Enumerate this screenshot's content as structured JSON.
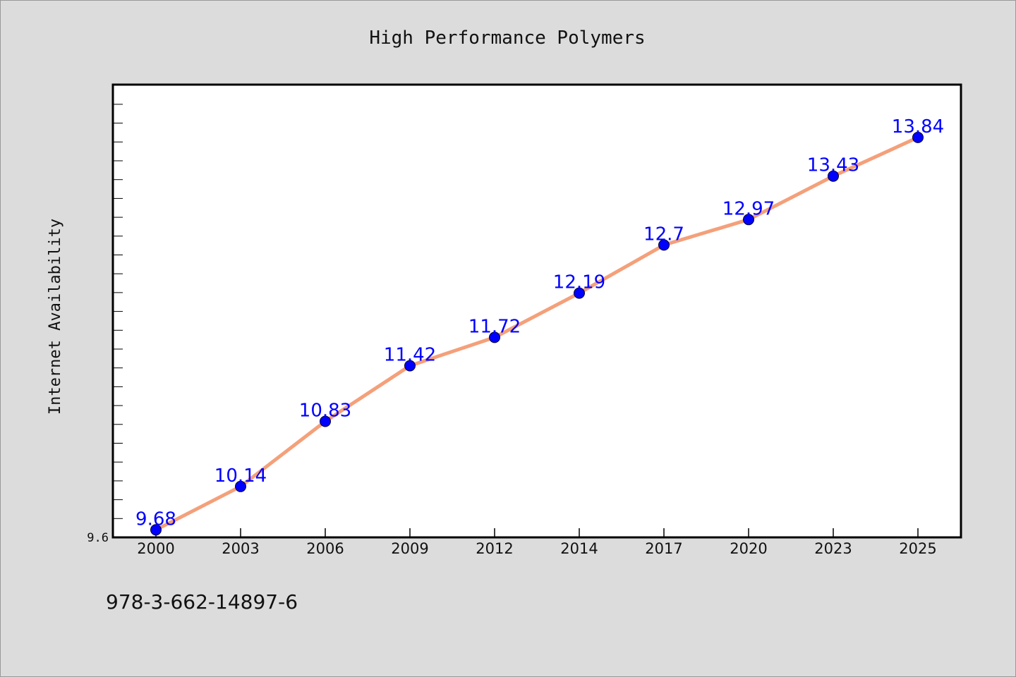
{
  "chart_data": {
    "type": "line",
    "title": "High Performance Polymers",
    "xlabel": "",
    "ylabel": "Internet Availability",
    "categories": [
      "2000",
      "2003",
      "2006",
      "2009",
      "2012",
      "2014",
      "2017",
      "2020",
      "2023",
      "2025"
    ],
    "series": [
      {
        "values": [
          9.68,
          10.14,
          10.83,
          11.42,
          11.72,
          12.19,
          12.7,
          12.97,
          13.43,
          13.84
        ]
      }
    ],
    "ylim": [
      9.6,
      14.4
    ],
    "yticks": [
      {
        "value": 9.6,
        "label": "9.6"
      }
    ],
    "grid": false,
    "legend": "none",
    "data_labels": true,
    "colors": {
      "line": "#f4a07a",
      "marker": "#0000ff",
      "data_label": "#0000ff",
      "plot_background": "#ffffff",
      "figure_background": "#dcdcdc"
    }
  },
  "footer": {
    "isbn": "978-3-662-14897-6"
  }
}
